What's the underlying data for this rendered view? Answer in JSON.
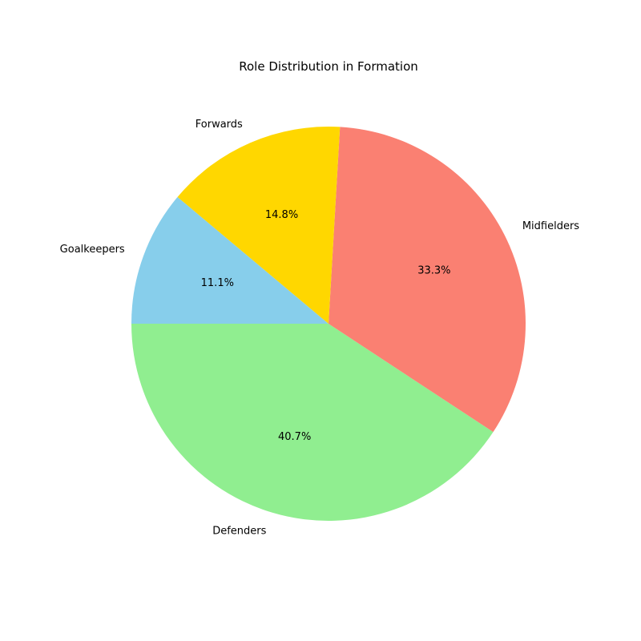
{
  "chart_data": {
    "type": "pie",
    "title": "Role Distribution in Formation",
    "slices": [
      {
        "label": "Goalkeepers",
        "value": 3,
        "percent_label": "11.1%",
        "color": "#87CEEB"
      },
      {
        "label": "Defenders",
        "value": 11,
        "percent_label": "40.7%",
        "color": "#90EE90"
      },
      {
        "label": "Midfielders",
        "value": 9,
        "percent_label": "33.3%",
        "color": "#FA8072"
      },
      {
        "label": "Forwards",
        "value": 4,
        "percent_label": "14.8%",
        "color": "#FFD700"
      }
    ],
    "start_angle_deg": 140,
    "direction": "counterclockwise"
  }
}
